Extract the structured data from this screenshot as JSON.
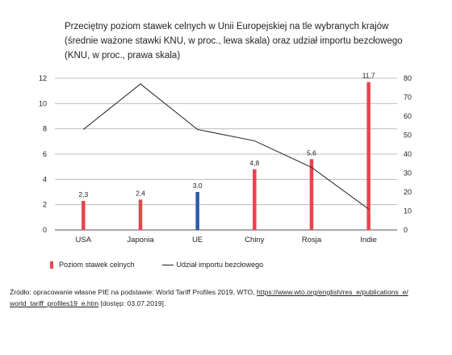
{
  "chart_data": {
    "type": "bar+line",
    "title_lines": [
      "Przeciętny poziom stawek celnych w Unii Europejskiej na tle wybranych krajów",
      "(średnie ważone stawki KNU, w proc., lewa skala) oraz udział importu bezcłowego",
      "(KNU, w proc., prawa skala)"
    ],
    "categories": [
      "USA",
      "Japonia",
      "UE",
      "Chiny",
      "Rosja",
      "Indie"
    ],
    "left_axis": {
      "ylim": [
        0,
        12
      ],
      "ticks": [
        0,
        2,
        4,
        6,
        8,
        10,
        12
      ]
    },
    "right_axis": {
      "ylim": [
        0,
        80
      ],
      "ticks": [
        0,
        10,
        20,
        30,
        40,
        50,
        60,
        70,
        80
      ]
    },
    "gridlines": true,
    "legend_position": "bottom",
    "series": [
      {
        "name": "Poziom stawek celnych",
        "kind": "bar",
        "axis": "left",
        "values": [
          2.3,
          2.4,
          3.0,
          4.8,
          5.6,
          11.7
        ],
        "labels": [
          "2,3",
          "2,4",
          "3,0",
          "4,8",
          "5,6",
          "11,7"
        ],
        "color": "#e8444e",
        "highlight": {
          "index": 2,
          "color": "#2b5ba8"
        }
      },
      {
        "name": "Udział importu bezcłowego",
        "kind": "line",
        "axis": "right",
        "values": [
          53,
          77,
          53,
          47,
          33,
          11
        ],
        "color": "#222222"
      }
    ]
  },
  "source": {
    "prefix": "Źródło: opracowanie własne PIE na podstawie: World Tariff Profiles 2019, WTO, ",
    "link_line1": "https://www.wto.org/english/res_e/publications_e/",
    "link_line2": "world_tariff_profiles19_e.htm",
    "suffix": " [dostęp: 03.07.2019]."
  }
}
